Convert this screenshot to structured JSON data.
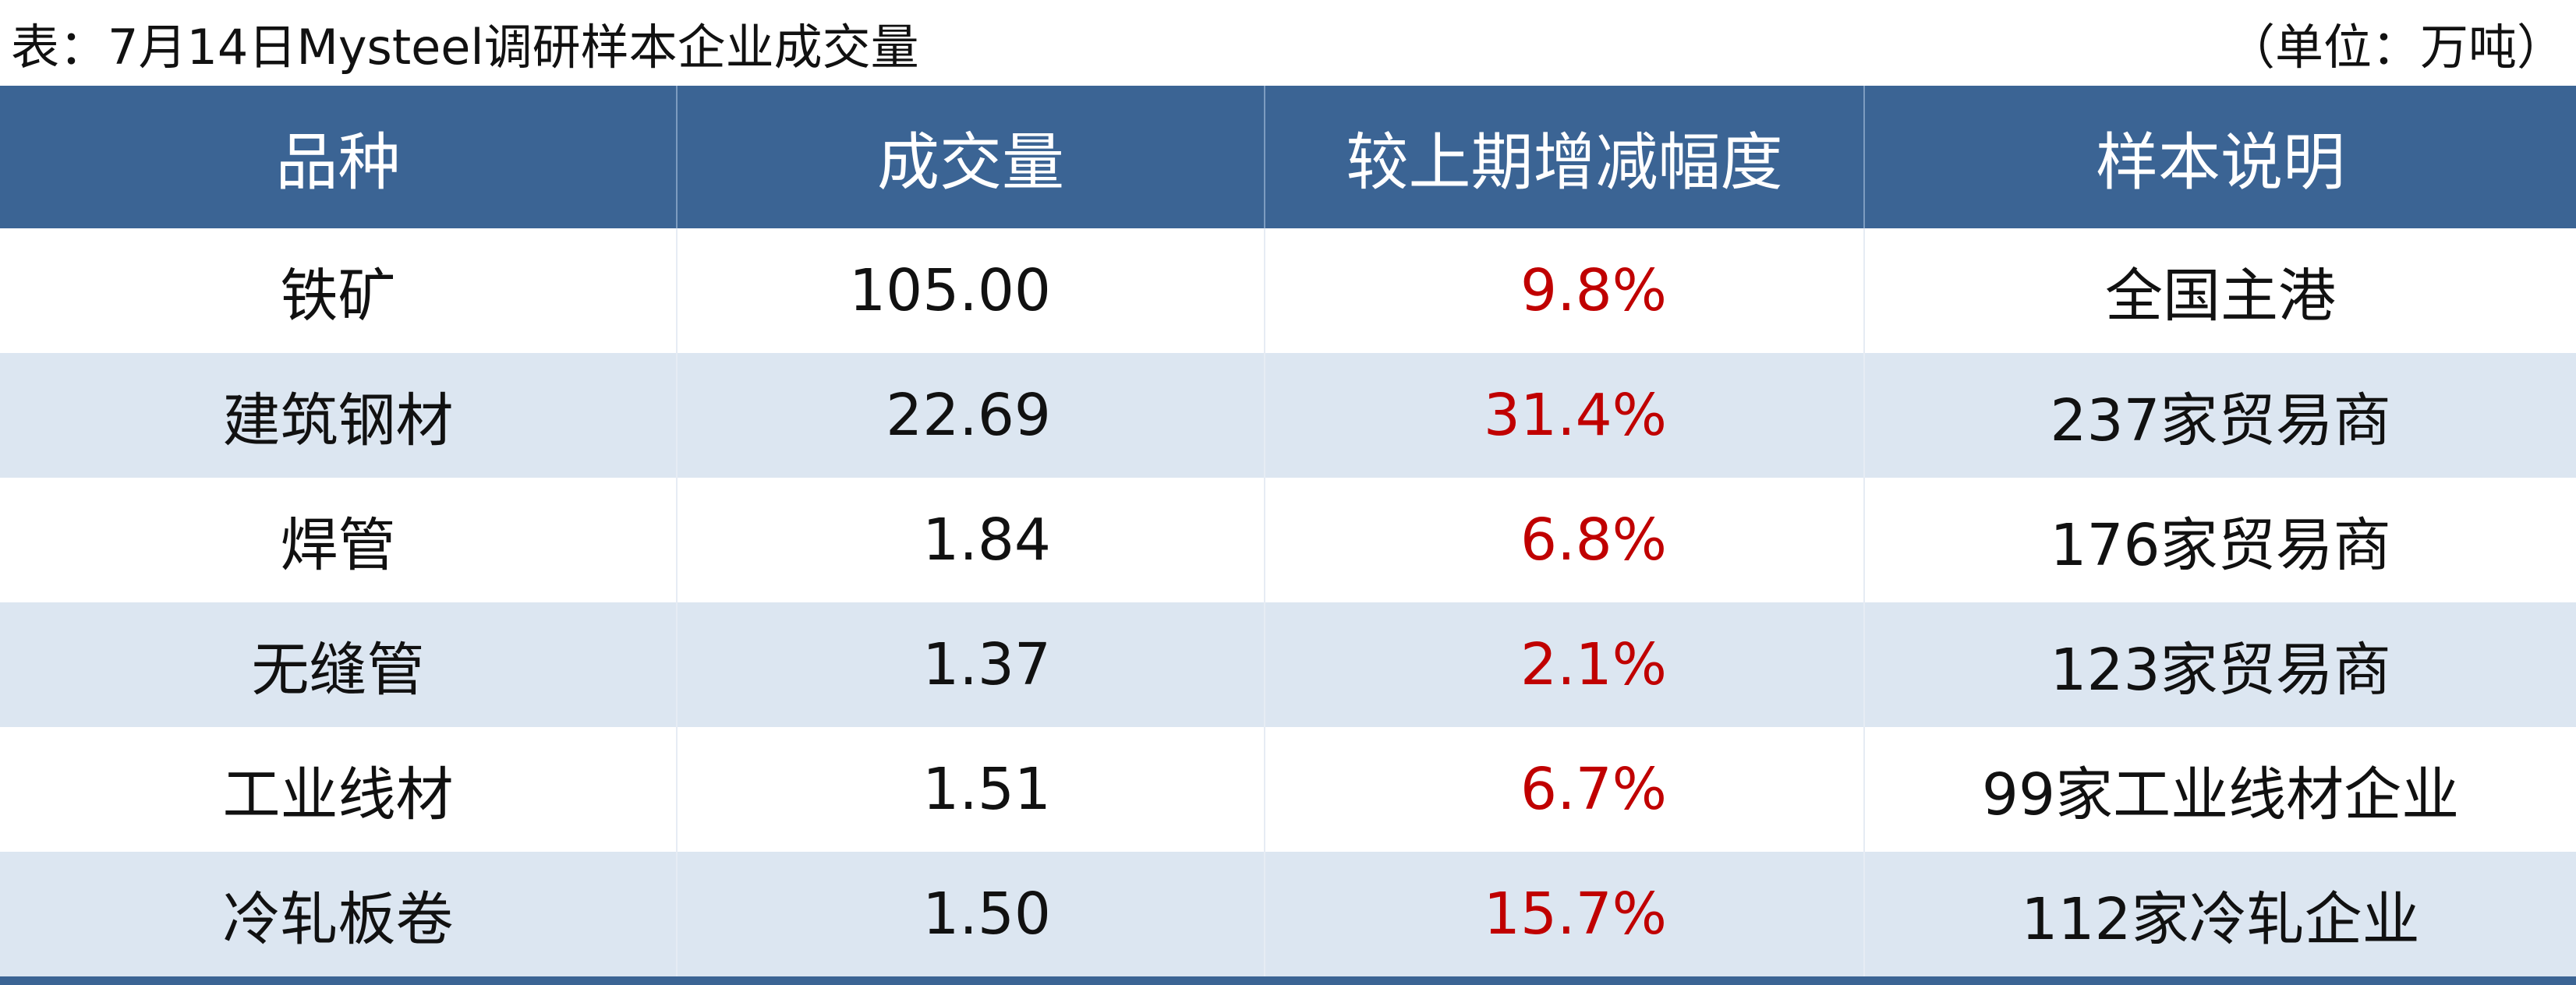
{
  "header": {
    "title": "表：7月14日Mysteel调研样本企业成交量",
    "unit": "（单位：万吨）"
  },
  "table": {
    "columns": [
      "品种",
      "成交量",
      "较上期增减幅度",
      "样本说明"
    ],
    "rows": [
      [
        "铁矿",
        "105.00",
        "9.8%",
        "全国主港"
      ],
      [
        "建筑钢材",
        "22.69",
        "31.4%",
        "237家贸易商"
      ],
      [
        "焊管",
        "1.84",
        "6.8%",
        "176家贸易商"
      ],
      [
        "无缝管",
        "1.37",
        "2.1%",
        "123家贸易商"
      ],
      [
        "工业线材",
        "1.51",
        "6.7%",
        "99家工业线材企业"
      ],
      [
        "冷轧板卷",
        "1.50",
        "15.7%",
        "112家冷轧企业"
      ]
    ]
  }
}
